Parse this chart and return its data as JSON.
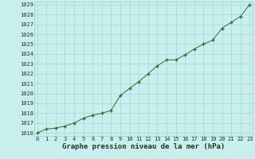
{
  "x": [
    0,
    1,
    2,
    3,
    4,
    5,
    6,
    7,
    8,
    9,
    10,
    11,
    12,
    13,
    14,
    15,
    16,
    17,
    18,
    19,
    20,
    21,
    22,
    23
  ],
  "y": [
    1016.0,
    1016.4,
    1016.5,
    1016.7,
    1017.0,
    1017.5,
    1017.8,
    1018.0,
    1018.3,
    1019.8,
    1020.5,
    1021.2,
    1022.0,
    1022.8,
    1023.4,
    1023.4,
    1023.9,
    1024.5,
    1025.0,
    1025.4,
    1026.6,
    1027.2,
    1027.8,
    1029.0
  ],
  "title": "Graphe pression niveau de la mer (hPa)",
  "xlim": [
    0,
    23
  ],
  "ylim": [
    1016,
    1029
  ],
  "yticks": [
    1016,
    1017,
    1018,
    1019,
    1020,
    1021,
    1022,
    1023,
    1024,
    1025,
    1026,
    1027,
    1028,
    1029
  ],
  "xticks": [
    0,
    1,
    2,
    3,
    4,
    5,
    6,
    7,
    8,
    9,
    10,
    11,
    12,
    13,
    14,
    15,
    16,
    17,
    18,
    19,
    20,
    21,
    22,
    23
  ],
  "line_color": "#2d6e2d",
  "marker_color": "#2d6e2d",
  "bg_color": "#c8eeee",
  "grid_color": "#9dcece",
  "title_color": "#1a3a1a",
  "tick_color": "#1a3a1a",
  "title_fontsize": 6.5,
  "tick_fontsize": 5.0
}
